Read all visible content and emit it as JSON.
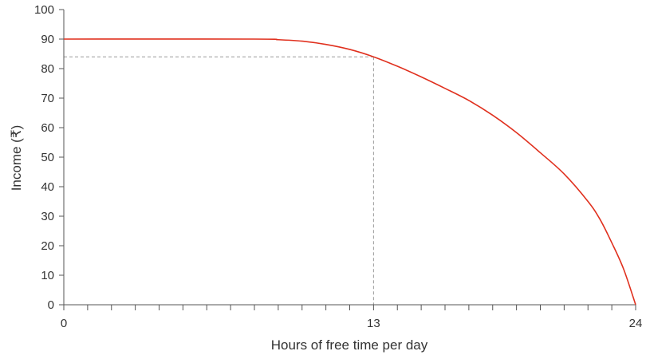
{
  "chart_data": {
    "type": "line",
    "title": "",
    "xlabel": "Hours of free time per day",
    "ylabel": "Income (₹)",
    "xlim": [
      0,
      24
    ],
    "ylim": [
      0,
      100
    ],
    "x_tick_labels": [
      "0",
      "13",
      "24"
    ],
    "x_tick_values": [
      0,
      13,
      24
    ],
    "x_minor_tick_step": 1,
    "y_tick_labels": [
      "0",
      "10",
      "20",
      "30",
      "40",
      "50",
      "60",
      "70",
      "80",
      "90",
      "100"
    ],
    "y_tick_values": [
      0,
      10,
      20,
      30,
      40,
      50,
      60,
      70,
      80,
      90,
      100
    ],
    "grid": false,
    "series": [
      {
        "color": "#e0301e",
        "x": [
          0,
          8,
          9,
          10,
          11,
          12,
          13,
          14,
          15,
          16,
          17,
          18,
          19,
          20,
          21,
          22,
          22.5,
          23,
          23.5,
          24
        ],
        "y": [
          90,
          90,
          89.8,
          89.3,
          88.2,
          86.5,
          84,
          80.8,
          77.2,
          73.3,
          69.2,
          64.2,
          58.3,
          51.5,
          44.3,
          35,
          29,
          21,
          12,
          0
        ]
      }
    ],
    "reference_point": {
      "x": 13,
      "y": 84,
      "line_style": "dashed",
      "color": "#999999"
    }
  }
}
